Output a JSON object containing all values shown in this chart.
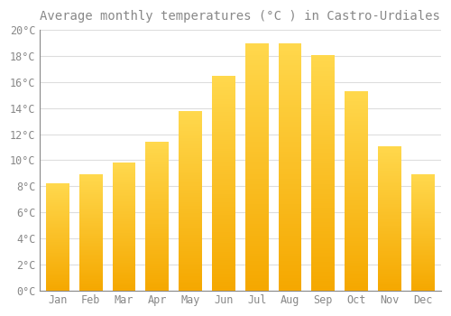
{
  "title": "Average monthly temperatures (°C ) in Castro-Urdiales",
  "months": [
    "Jan",
    "Feb",
    "Mar",
    "Apr",
    "May",
    "Jun",
    "Jul",
    "Aug",
    "Sep",
    "Oct",
    "Nov",
    "Dec"
  ],
  "temperatures": [
    8.2,
    8.9,
    9.8,
    11.4,
    13.8,
    16.5,
    19.0,
    19.0,
    18.1,
    15.3,
    11.1,
    8.9
  ],
  "bar_color_dark": "#F5A800",
  "bar_color_light": "#FFD84D",
  "background_color": "#FFFFFF",
  "grid_color": "#DDDDDD",
  "text_color": "#888888",
  "ylim": [
    0,
    20
  ],
  "yticks": [
    0,
    2,
    4,
    6,
    8,
    10,
    12,
    14,
    16,
    18,
    20
  ],
  "bar_width": 0.7,
  "title_fontsize": 10,
  "tick_fontsize": 8.5,
  "gradient_steps": 100
}
